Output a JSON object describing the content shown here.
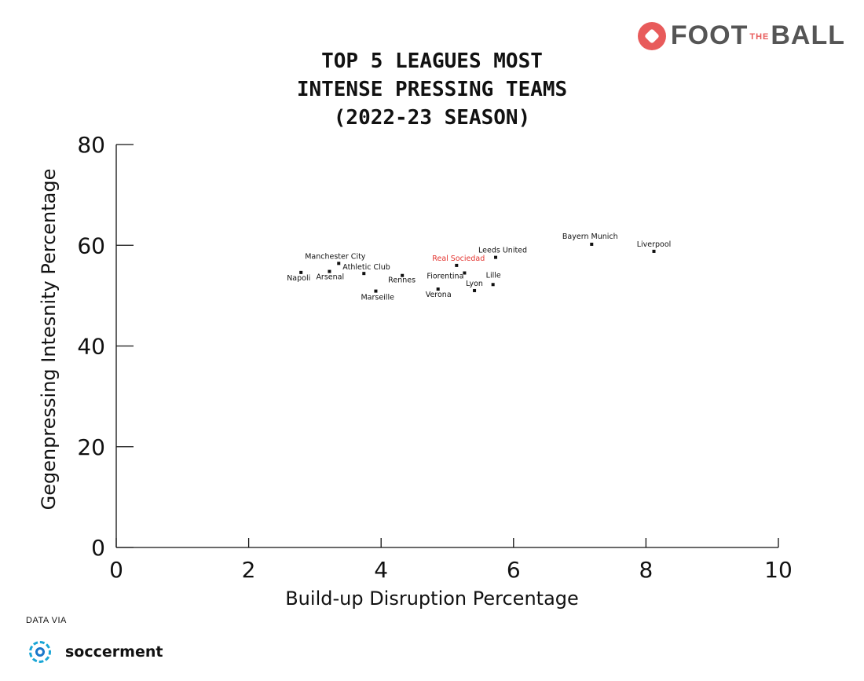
{
  "brand": {
    "logo_left": "FOOT",
    "logo_mid": "THE",
    "logo_right": "BALL"
  },
  "credit": {
    "label": "DATA VIA",
    "source": "soccerment",
    "accent": "#1aa6d6"
  },
  "chart_data": {
    "type": "scatter",
    "title_lines": [
      "TOP 5 LEAGUES MOST",
      "INTENSE PRESSING TEAMS",
      "(2022-23 SEASON)"
    ],
    "xlabel": "Build-up Disruption Percentage",
    "ylabel": "Gegenpressing Intesnity Percentage",
    "xlim": [
      0,
      10
    ],
    "ylim": [
      0,
      80
    ],
    "xticks": [
      0,
      2,
      4,
      6,
      8,
      10
    ],
    "yticks": [
      0,
      20,
      40,
      60,
      80
    ],
    "grid": false,
    "highlight_color": "#e3342f",
    "points": [
      {
        "label": "Liverpool",
        "x": 8.12,
        "y": 58.8
      },
      {
        "label": "Bayern Munich",
        "x": 7.18,
        "y": 60.2
      },
      {
        "label": "Leeds United",
        "x": 5.73,
        "y": 57.6
      },
      {
        "label": "Real Sociedad",
        "x": 5.14,
        "y": 56.0,
        "highlight": true
      },
      {
        "label": "Fiorentina",
        "x": 5.26,
        "y": 54.5
      },
      {
        "label": "Lille",
        "x": 5.69,
        "y": 52.2
      },
      {
        "label": "Lyon",
        "x": 5.41,
        "y": 51.0
      },
      {
        "label": "Verona",
        "x": 4.86,
        "y": 51.3
      },
      {
        "label": "Rennes",
        "x": 4.32,
        "y": 54.0
      },
      {
        "label": "Marseille",
        "x": 3.92,
        "y": 50.9
      },
      {
        "label": "Athletic Club",
        "x": 3.74,
        "y": 54.4
      },
      {
        "label": "Manchester City",
        "x": 3.36,
        "y": 56.4
      },
      {
        "label": "Arsenal",
        "x": 3.22,
        "y": 54.8
      },
      {
        "label": "Napoli",
        "x": 2.79,
        "y": 54.6
      }
    ]
  }
}
